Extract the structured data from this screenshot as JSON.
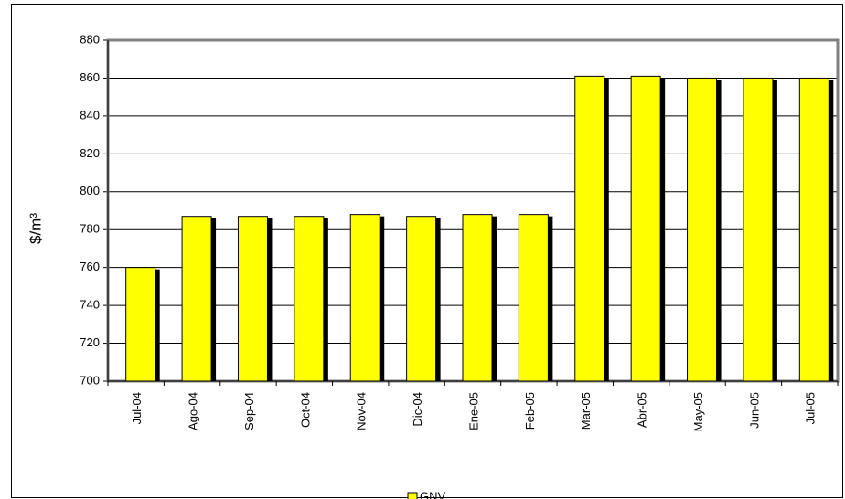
{
  "chart_data": {
    "type": "bar",
    "y_label": "$/m³",
    "categories": [
      "Jul-04",
      "Ago-04",
      "Sep-04",
      "Oct-04",
      "Nov-04",
      "Dic-04",
      "Ene-05",
      "Feb-05",
      "Mar-05",
      "Abr-05",
      "May-05",
      "Jun-05",
      "Jul-05"
    ],
    "series": [
      {
        "name": "GNV",
        "color": "#ffff00",
        "values": [
          760,
          787,
          787,
          787,
          788,
          787,
          788,
          788,
          861,
          861,
          860,
          860,
          860
        ]
      }
    ],
    "ylim": [
      700,
      880
    ],
    "yticks": [
      700,
      720,
      740,
      760,
      780,
      800,
      820,
      840,
      860,
      880
    ],
    "grid": true,
    "legend": "bottom"
  }
}
